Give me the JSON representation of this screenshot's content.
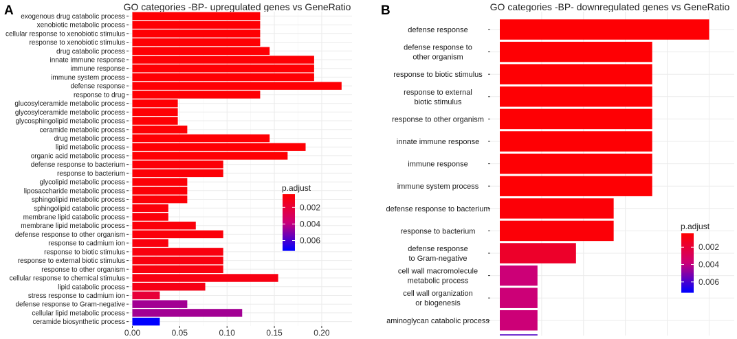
{
  "chart_data": [
    {
      "panel_label": "A",
      "type": "bar",
      "orientation": "horizontal",
      "title": "GO categories -BP- upregulated genes vs GeneRatio",
      "xlabel": "",
      "ylabel": "",
      "xlim": [
        -0.004,
        0.232
      ],
      "x_ticks": [
        0.0,
        0.05,
        0.1,
        0.15,
        0.2
      ],
      "x_tick_labels": [
        "0.00",
        "0.05",
        "0.10",
        "0.15",
        "0.20"
      ],
      "grid": true,
      "legend": {
        "title": "p.adjust",
        "placement": "right",
        "ticks": [
          "0.002",
          "0.004",
          "0.006"
        ],
        "tick_values": [
          0.002,
          0.004,
          0.006
        ],
        "range": [
          0.0004,
          0.0072
        ]
      },
      "bars": [
        {
          "label": "exogenous drug catabolic process",
          "value": 0.135,
          "padj": 0.0005
        },
        {
          "label": "xenobiotic metabolic process",
          "value": 0.135,
          "padj": 0.0005
        },
        {
          "label": "cellular response to xenobiotic stimulus",
          "value": 0.135,
          "padj": 0.0005
        },
        {
          "label": "response to xenobiotic stimulus",
          "value": 0.135,
          "padj": 0.0005
        },
        {
          "label": "drug catabolic process",
          "value": 0.145,
          "padj": 0.0005
        },
        {
          "label": "innate immune response",
          "value": 0.192,
          "padj": 0.0005
        },
        {
          "label": "immune response",
          "value": 0.192,
          "padj": 0.0005
        },
        {
          "label": "immune system process",
          "value": 0.192,
          "padj": 0.0005
        },
        {
          "label": "defense response",
          "value": 0.221,
          "padj": 0.0005
        },
        {
          "label": "response to drug",
          "value": 0.135,
          "padj": 0.0005
        },
        {
          "label": "glucosylceramide metabolic process",
          "value": 0.048,
          "padj": 0.0005
        },
        {
          "label": "glycosylceramide metabolic process",
          "value": 0.048,
          "padj": 0.0005
        },
        {
          "label": "glycosphingolipid metabolic process",
          "value": 0.048,
          "padj": 0.0005
        },
        {
          "label": "ceramide metabolic process",
          "value": 0.058,
          "padj": 0.0005
        },
        {
          "label": "drug metabolic process",
          "value": 0.145,
          "padj": 0.0005
        },
        {
          "label": "lipid metabolic process",
          "value": 0.183,
          "padj": 0.0005
        },
        {
          "label": "organic acid metabolic process",
          "value": 0.164,
          "padj": 0.0005
        },
        {
          "label": "defense response to bacterium",
          "value": 0.096,
          "padj": 0.0006
        },
        {
          "label": "response to bacterium",
          "value": 0.096,
          "padj": 0.0006
        },
        {
          "label": "glycolipid metabolic process",
          "value": 0.058,
          "padj": 0.0006
        },
        {
          "label": "liposaccharide metabolic process",
          "value": 0.058,
          "padj": 0.0006
        },
        {
          "label": "sphingolipid metabolic process",
          "value": 0.058,
          "padj": 0.0006
        },
        {
          "label": "sphingolipid catabolic process",
          "value": 0.038,
          "padj": 0.0007
        },
        {
          "label": "membrane lipid catabolic process",
          "value": 0.038,
          "padj": 0.0007
        },
        {
          "label": "membrane lipid metabolic process",
          "value": 0.067,
          "padj": 0.0007
        },
        {
          "label": "defense response to other organism",
          "value": 0.096,
          "padj": 0.0007
        },
        {
          "label": "response to cadmium ion",
          "value": 0.038,
          "padj": 0.0008
        },
        {
          "label": "response to biotic stimulus",
          "value": 0.096,
          "padj": 0.0008
        },
        {
          "label": "response to external biotic stimulus",
          "value": 0.096,
          "padj": 0.0008
        },
        {
          "label": "response to other organism",
          "value": 0.096,
          "padj": 0.0008
        },
        {
          "label": "cellular response to chemical stimulus",
          "value": 0.154,
          "padj": 0.0009
        },
        {
          "label": "lipid catabolic process",
          "value": 0.077,
          "padj": 0.001
        },
        {
          "label": "stress response to cadmium ion",
          "value": 0.029,
          "padj": 0.002
        },
        {
          "label": "defense response to Gram-negative",
          "value": 0.058,
          "padj": 0.0045
        },
        {
          "label": "cellular lipid metabolic process",
          "value": 0.116,
          "padj": 0.0045
        },
        {
          "label": "ceramide biosynthetic process",
          "value": 0.029,
          "padj": 0.0072
        }
      ]
    },
    {
      "panel_label": "B",
      "type": "bar",
      "orientation": "horizontal",
      "title": "GO categories -BP- downregulated genes vs GeneRatio",
      "xlabel": "",
      "ylabel": "",
      "xlim": [
        0.0,
        0.28
      ],
      "grid": true,
      "legend": {
        "title": "p.adjust",
        "placement": "right",
        "ticks": [
          "0.002",
          "0.004",
          "0.006"
        ],
        "tick_values": [
          0.002,
          0.004,
          0.006
        ],
        "range": [
          0.0004,
          0.0072
        ]
      },
      "bars": [
        {
          "label": "defense response",
          "lines": [
            "defense response"
          ],
          "value": 0.25,
          "padj": 0.0005
        },
        {
          "label": "defense response to other organism",
          "lines": [
            "defense response to",
            "other organism"
          ],
          "value": 0.182,
          "padj": 0.0005
        },
        {
          "label": "response to biotic stimulus",
          "lines": [
            "response to biotic stimulus"
          ],
          "value": 0.182,
          "padj": 0.0005
        },
        {
          "label": "response to external biotic stimulus",
          "lines": [
            "response to external",
            "biotic stimulus"
          ],
          "value": 0.182,
          "padj": 0.0005
        },
        {
          "label": "response to other organism",
          "lines": [
            "response to other organism"
          ],
          "value": 0.182,
          "padj": 0.0005
        },
        {
          "label": "innate immune response",
          "lines": [
            "innate immune response"
          ],
          "value": 0.182,
          "padj": 0.0005
        },
        {
          "label": "immune response",
          "lines": [
            "immune response"
          ],
          "value": 0.182,
          "padj": 0.0005
        },
        {
          "label": "immune system process",
          "lines": [
            "immune system process"
          ],
          "value": 0.182,
          "padj": 0.0005
        },
        {
          "label": "defense response to bacterium",
          "lines": [
            "defense response to bacterium"
          ],
          "value": 0.136,
          "padj": 0.0006
        },
        {
          "label": "response to bacterium",
          "lines": [
            "response to bacterium"
          ],
          "value": 0.136,
          "padj": 0.0006
        },
        {
          "label": "defense response to Gram-negative",
          "lines": [
            "defense response",
            "to Gram-negative"
          ],
          "value": 0.091,
          "padj": 0.0016
        },
        {
          "label": "cell wall macromolecule metabolic process",
          "lines": [
            "cell wall macromolecule",
            "metabolic process"
          ],
          "value": 0.045,
          "padj": 0.0038
        },
        {
          "label": "cell wall organization or biogenesis",
          "lines": [
            "cell wall organization",
            "or biogenesis"
          ],
          "value": 0.045,
          "padj": 0.0038
        },
        {
          "label": "aminoglycan catabolic process",
          "lines": [
            "aminoglycan catabolic process"
          ],
          "value": 0.045,
          "padj": 0.0038
        }
      ]
    }
  ],
  "colors": {
    "low_padj": "#ff0000",
    "mid_padj": "#cc0077",
    "high_padj": "#0000ff",
    "panel_bg": "#ffffff",
    "grid": "#ebebeb",
    "axis": "#333333"
  }
}
